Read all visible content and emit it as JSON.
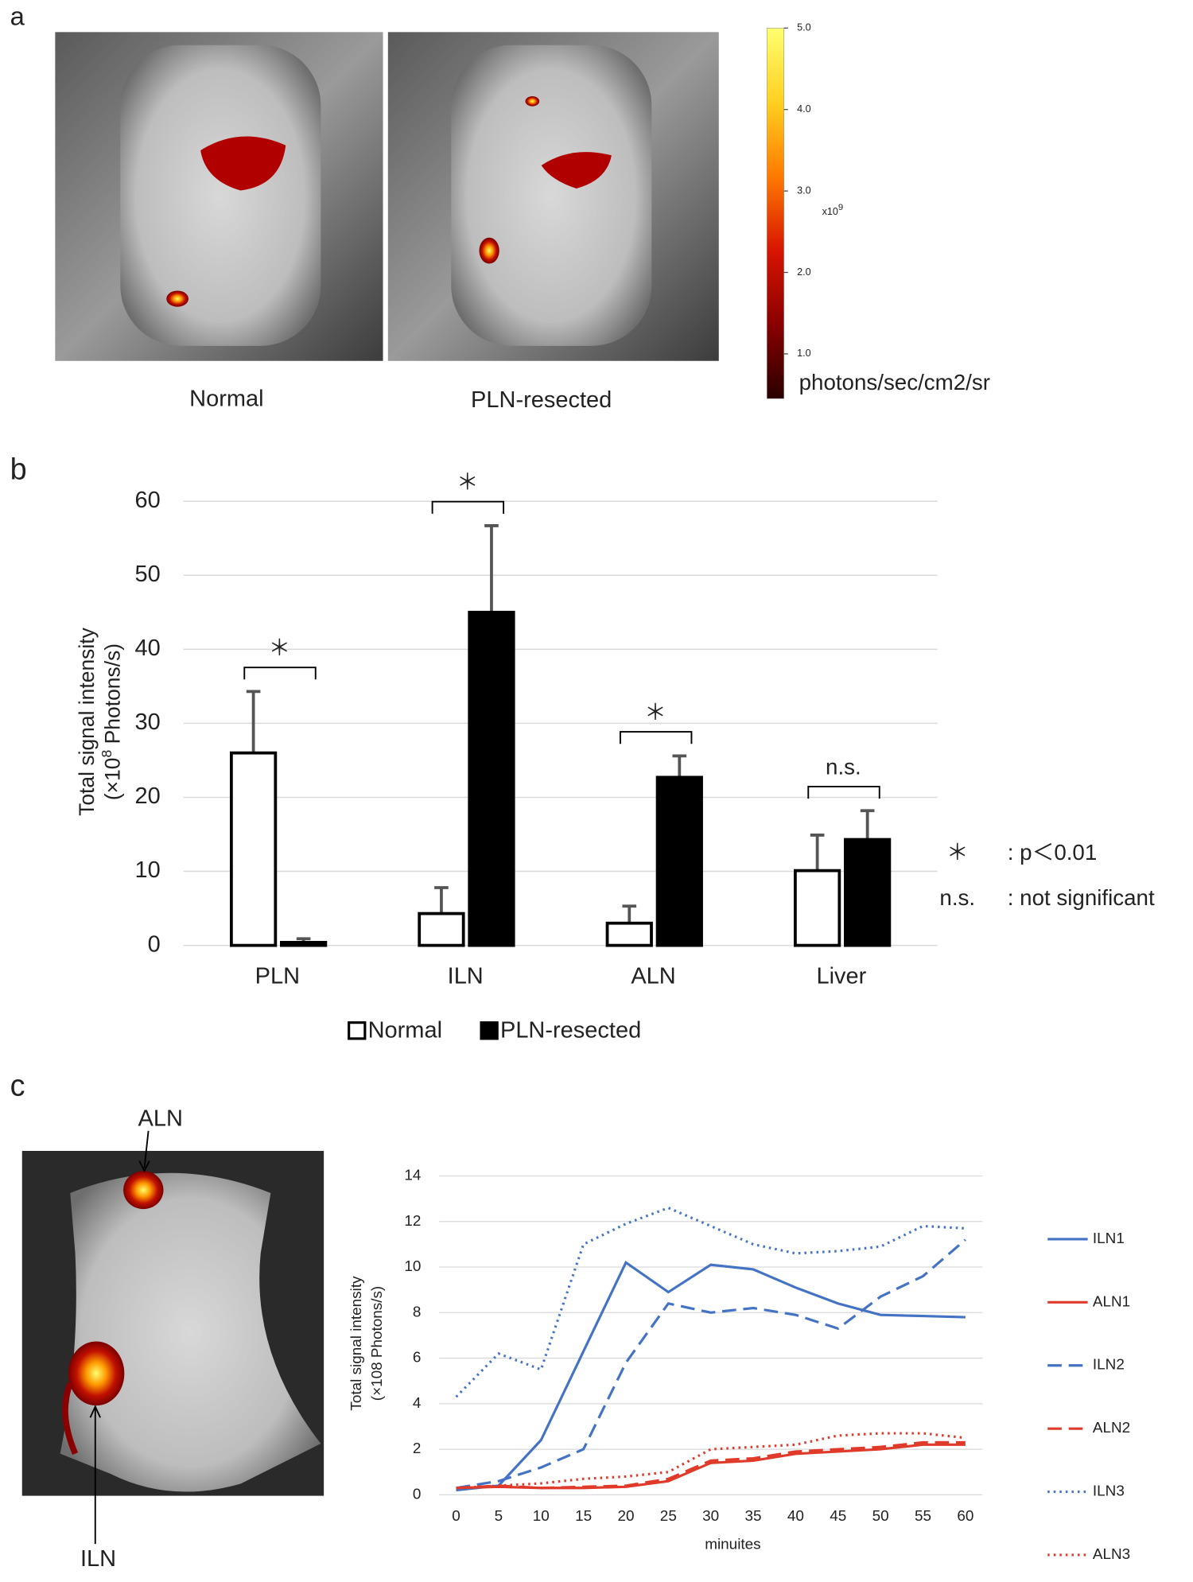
{
  "panel_labels": [
    "a",
    "b",
    "c"
  ],
  "panel_a": {
    "images": [
      "Normal",
      "PLN-resected"
    ]
  },
  "panel_c": {
    "image_labels": [
      "ALN",
      "ILN"
    ]
  },
  "chart_data": [
    {
      "type": "colorbar",
      "ylim": [
        0.5,
        5.0
      ],
      "ticks": [
        {
          "value": 5.0,
          "label": "5.0"
        },
        {
          "value": 4.0,
          "label": "4.0"
        },
        {
          "value": 3.0,
          "label": "3.0"
        },
        {
          "value": 2.0,
          "label": "2.0"
        },
        {
          "value": 1.0,
          "label": "1.0"
        }
      ],
      "unit_prefix": "x10",
      "unit_exponent": "9",
      "unit": "photons/sec/cm2/sr",
      "colors": [
        "#2a0000",
        "#8a0000",
        "#d81500",
        "#ff7a00",
        "#ffd020",
        "#ffff70"
      ]
    },
    {
      "type": "bar",
      "y_label": [
        "Total signal intensity",
        "(×10",
        "8",
        " Photons/s)"
      ],
      "categories": [
        "PLN",
        "ILN",
        "ALN",
        "Liver"
      ],
      "series": [
        {
          "name": "Normal",
          "color": "#ffffff",
          "values": [
            26.0,
            4.3,
            3.0,
            10.1
          ],
          "errors": [
            8.3,
            3.5,
            2.3,
            4.8
          ]
        },
        {
          "name": "PLN-resected",
          "color": "#000000",
          "values": [
            0.4,
            45.0,
            22.7,
            14.3
          ],
          "errors": [
            0.5,
            11.7,
            2.9,
            3.9
          ]
        }
      ],
      "significance": [
        "＊",
        "＊",
        "＊",
        "n.s."
      ],
      "notes": [
        [
          "＊",
          ": p＜0.01"
        ],
        [
          "n.s.",
          ": not significant"
        ]
      ],
      "ylim": [
        0,
        60
      ],
      "yticks": [
        0,
        10,
        20,
        30,
        40,
        50,
        60
      ],
      "grid": true
    },
    {
      "type": "line",
      "y_label": [
        "Total signal intensity",
        "(×108 Photons/s)"
      ],
      "x_label": "minuites",
      "x": [
        0,
        5,
        10,
        15,
        20,
        25,
        30,
        35,
        40,
        45,
        50,
        55,
        60
      ],
      "series": [
        {
          "name": "ILN1",
          "color": "#4472c4",
          "dash": "solid",
          "values": [
            0.2,
            0.4,
            2.4,
            6.3,
            10.2,
            8.9,
            10.1,
            9.9,
            9.1,
            8.4,
            7.9,
            7.85,
            7.8
          ]
        },
        {
          "name": "ALN1",
          "color": "#e03a2a",
          "dash": "solid",
          "values": [
            0.3,
            0.35,
            0.3,
            0.3,
            0.35,
            0.6,
            1.4,
            1.5,
            1.8,
            1.9,
            2.0,
            2.2,
            2.2
          ]
        },
        {
          "name": "ILN2",
          "color": "#4472c4",
          "dash": "dashed",
          "values": [
            0.3,
            0.6,
            1.2,
            2.0,
            5.8,
            8.4,
            8.0,
            8.2,
            7.9,
            7.3,
            8.7,
            9.6,
            11.2
          ]
        },
        {
          "name": "ALN2",
          "color": "#e03a2a",
          "dash": "dashed",
          "values": [
            0.3,
            0.4,
            0.3,
            0.35,
            0.4,
            0.7,
            1.5,
            1.6,
            1.9,
            2.0,
            2.1,
            2.3,
            2.3
          ]
        },
        {
          "name": "ILN3",
          "color": "#4472c4",
          "dash": "dotted",
          "values": [
            4.3,
            6.2,
            5.5,
            11.0,
            11.9,
            12.6,
            11.8,
            11.0,
            10.6,
            10.7,
            10.9,
            11.8,
            11.7
          ]
        },
        {
          "name": "ALN3",
          "color": "#e03a2a",
          "dash": "dotted",
          "values": [
            0.3,
            0.4,
            0.5,
            0.7,
            0.8,
            1.0,
            2.0,
            2.1,
            2.2,
            2.6,
            2.7,
            2.7,
            2.5
          ]
        }
      ],
      "xlim": [
        0,
        60
      ],
      "xticks": [
        0,
        5,
        10,
        15,
        20,
        25,
        30,
        35,
        40,
        45,
        50,
        55,
        60
      ],
      "ylim": [
        0,
        14
      ],
      "yticks": [
        0,
        2,
        4,
        6,
        8,
        10,
        12,
        14
      ],
      "grid": true,
      "legend": "right"
    }
  ]
}
